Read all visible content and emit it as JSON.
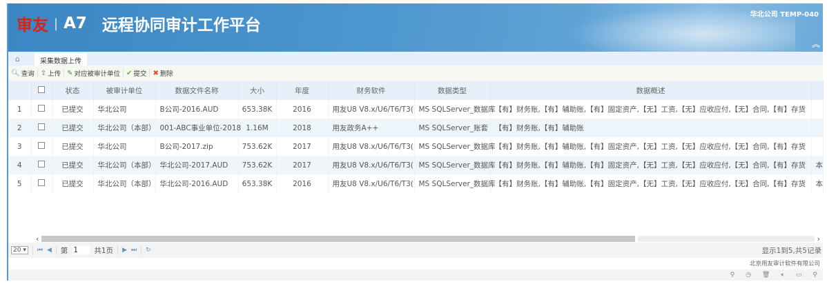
{
  "header": {
    "brand": "审友",
    "product": "A7",
    "title": "远程协同审计工作平台",
    "user": "华北公司  TEMP-040"
  },
  "tabs": [
    {
      "label": "采集数据上传"
    }
  ],
  "toolbar": {
    "query": "查询",
    "upload": "上传",
    "map_unit": "对应被审计单位",
    "submit": "提交",
    "delete": "删除"
  },
  "table": {
    "columns": [
      "状态",
      "被审计单位",
      "数据文件名称",
      "大小",
      "年度",
      "财务软件",
      "数据类型",
      "数据概述"
    ],
    "rows": [
      {
        "n": "1",
        "status": "已提交",
        "unit": "华北公司",
        "file": "B公司-2016.AUD",
        "size": "653.38K",
        "year": "2016",
        "software": "用友U8 V8.x/U6/T6/T3(",
        "type": "MS SQLServer_数据库",
        "summary": "【有】财务账,【有】辅助账,【有】固定资产,【无】工资,【无】应收应付,【无】合同,【有】存货",
        "extra": ""
      },
      {
        "n": "2",
        "status": "已提交",
        "unit": "华北公司（本部）",
        "file": "001-ABC事业单位-2018",
        "size": "1.16M",
        "year": "2018",
        "software": "用友政务A++",
        "type": "MS SQLServer_账套",
        "summary": "【有】财务账,【有】辅助账",
        "extra": ""
      },
      {
        "n": "3",
        "status": "已提交",
        "unit": "华北公司",
        "file": "B公司-2017.zip",
        "size": "753.62K",
        "year": "2017",
        "software": "用友U8 V8.x/U6/T6/T3(",
        "type": "MS SQLServer_数据库",
        "summary": "【有】财务账,【有】辅助账,【有】固定资产,【无】工资,【无】应收应付,【无】合同,【有】存货",
        "extra": ""
      },
      {
        "n": "4",
        "status": "已提交",
        "unit": "华北公司（本部）",
        "file": "华北公司-2017.AUD",
        "size": "753.62K",
        "year": "2017",
        "software": "用友U8 V8.x/U6/T6/T3(",
        "type": "MS SQLServer_数据库",
        "summary": "【有】财务账,【有】辅助账,【有】固定资产,【无】工资,【无】应收应付,【无】合同,【有】存货",
        "extra": "本"
      },
      {
        "n": "5",
        "status": "已提交",
        "unit": "华北公司（本部）",
        "file": "华北公司-2016.AUD",
        "size": "653.38K",
        "year": "2016",
        "software": "用友U8 V8.x/U6/T6/T3(",
        "type": "MS SQLServer_数据库",
        "summary": "【有】财务账,【有】辅助账,【有】固定资产,【无】工资,【无】应收应付,【无】合同,【有】存货",
        "extra": "本"
      }
    ]
  },
  "pager": {
    "page_size": "20",
    "page_prefix": "第",
    "page": "1",
    "total_pages": "共1页",
    "info": "显示1到5,共5记录"
  },
  "footer": {
    "company": "北京用友审计软件有限公司"
  }
}
